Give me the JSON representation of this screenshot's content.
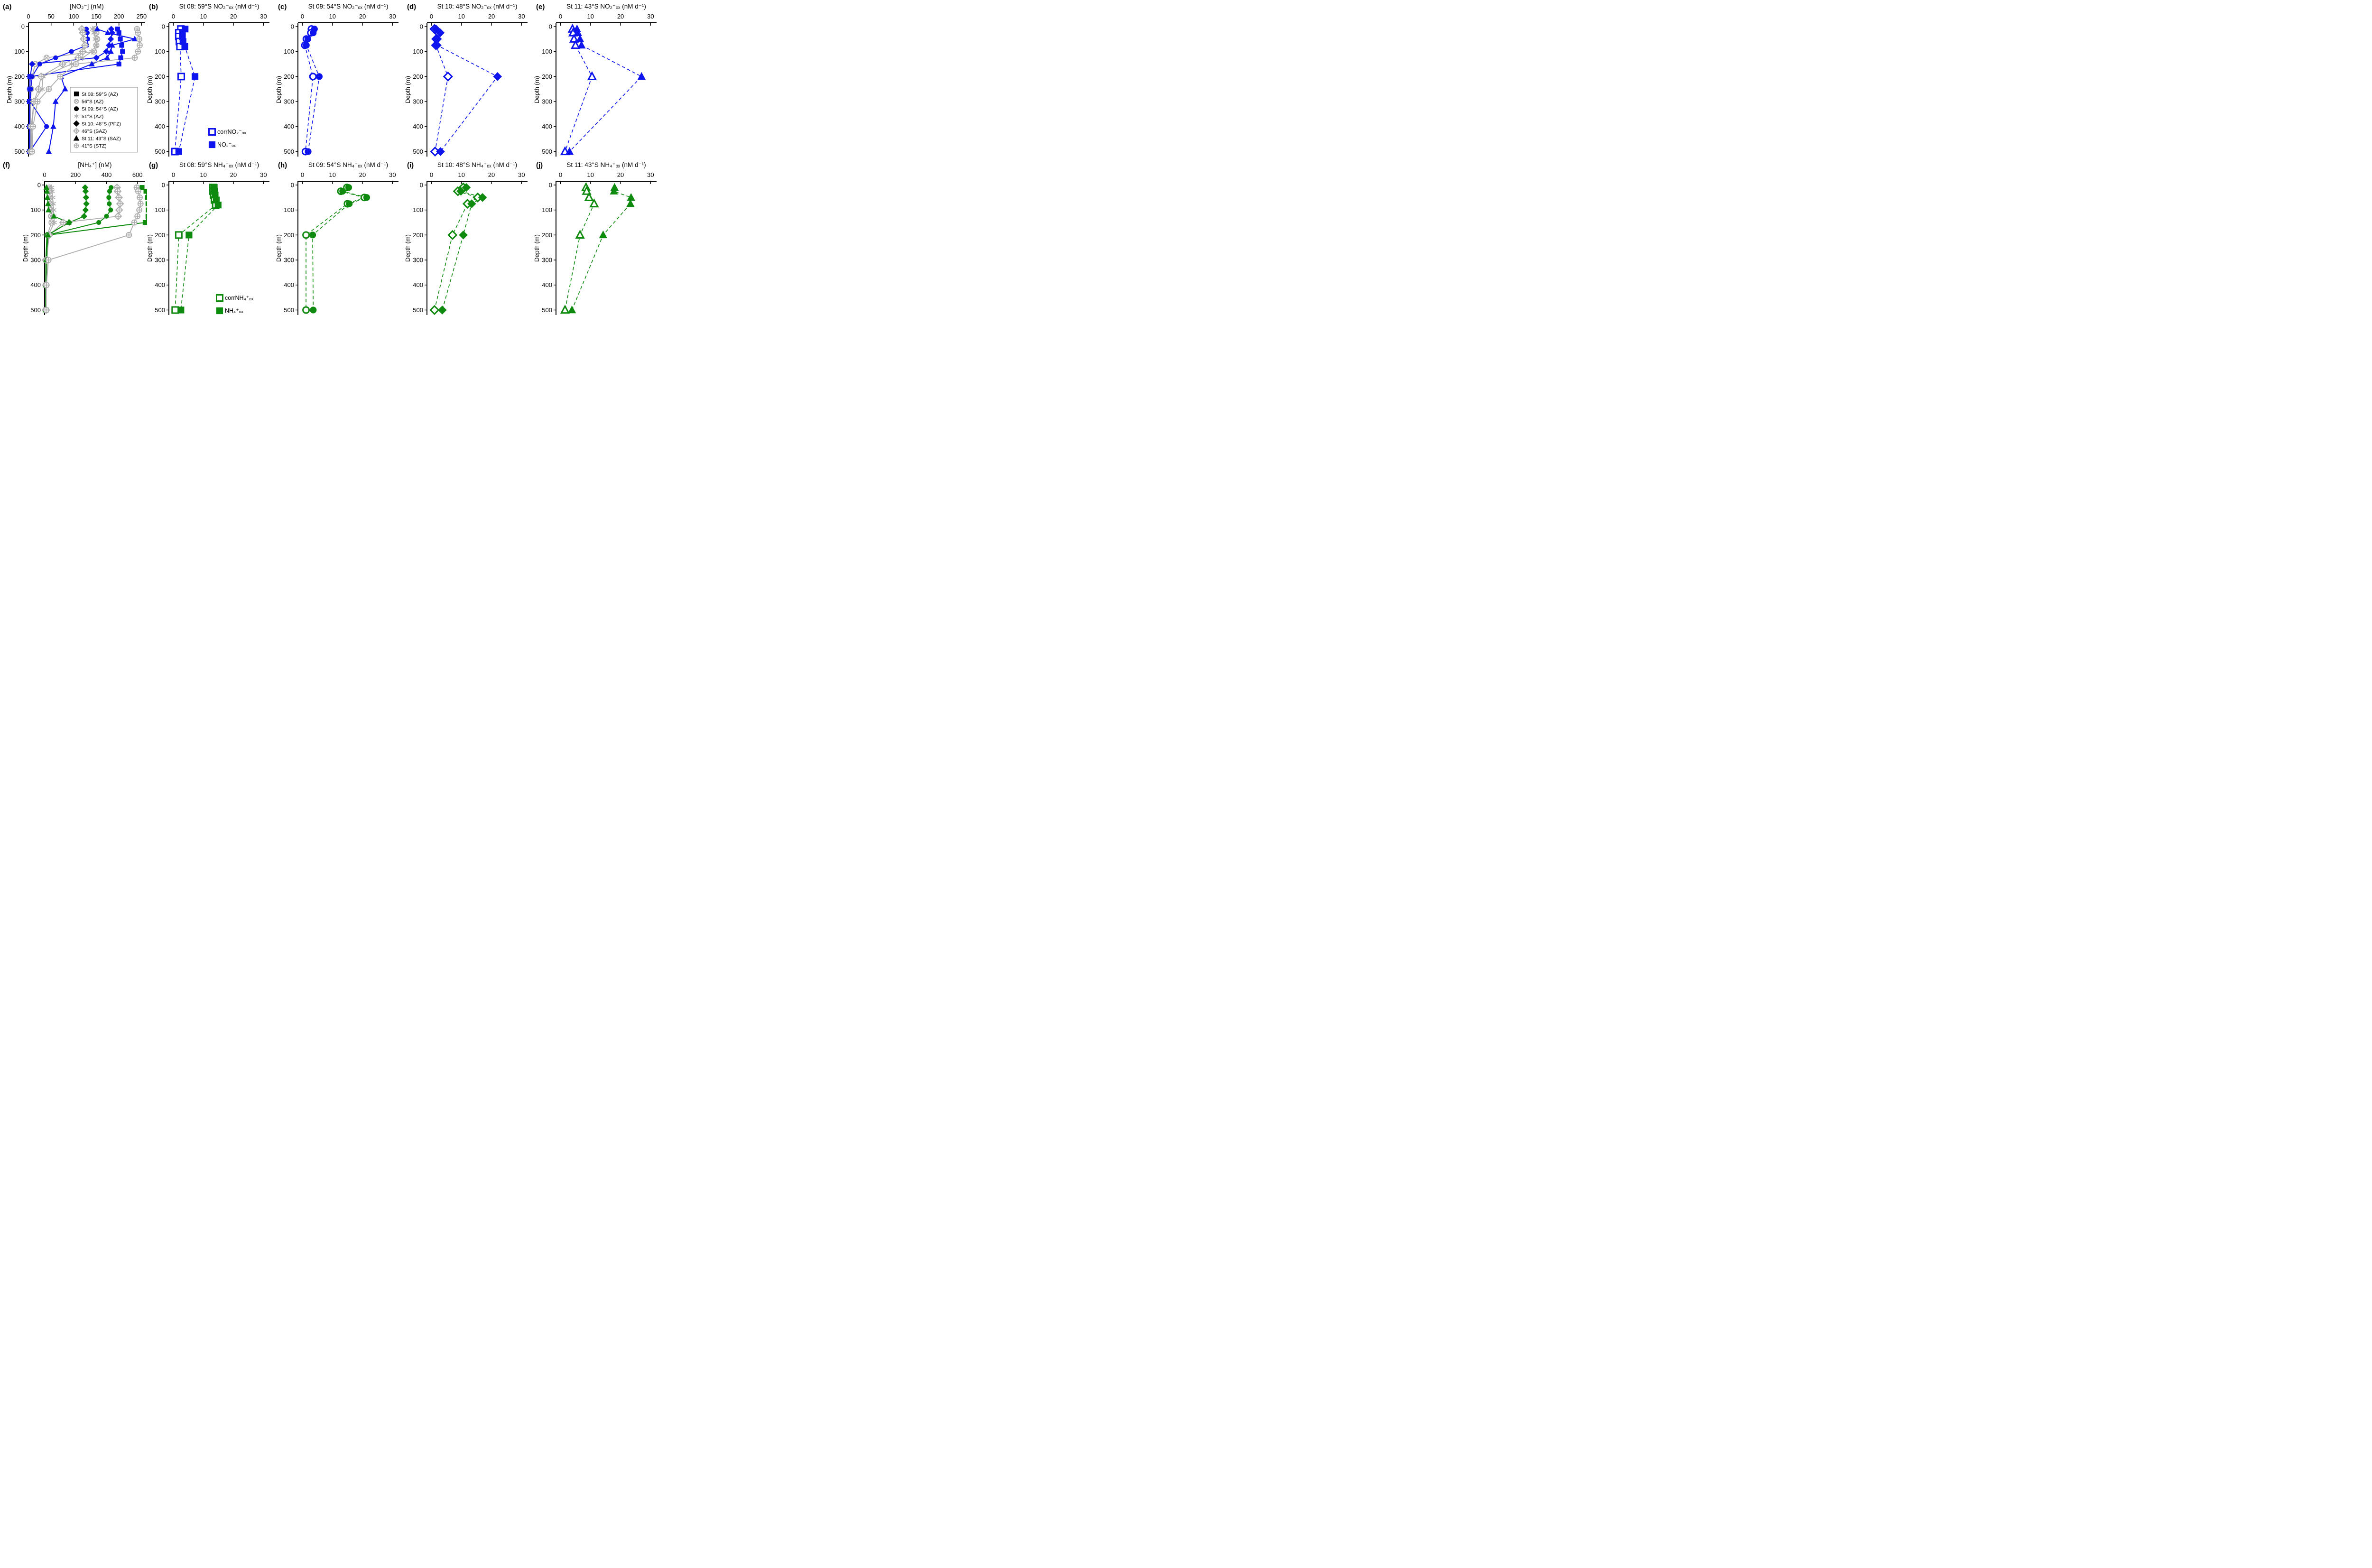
{
  "figure": {
    "background": "#ffffff",
    "colors": {
      "blue": "#0E14EE",
      "green": "#0E8B0E",
      "gray": "#ADADAD",
      "black": "#000000"
    },
    "y_axis_label": "Depth (m)"
  },
  "chart_data": [
    {
      "id": "a",
      "label": "(a)",
      "title": "[NO₂⁻] (nM)",
      "kind": "conc",
      "type": "line",
      "xlabel": "[NO2-] (nM)",
      "ylabel": "Depth (m)",
      "x": {
        "min": 0,
        "max": 258,
        "ticks": [
          0,
          50,
          100,
          150,
          200,
          250
        ]
      },
      "depth_axis": {
        "min": 0,
        "max": 500,
        "ticks": [
          0,
          100,
          200,
          300,
          400,
          500
        ]
      },
      "depths": [
        10,
        25,
        50,
        75,
        100,
        125,
        150,
        200,
        250,
        300,
        400,
        500
      ],
      "series": [
        {
          "name": "St 08: 59°S (AZ)",
          "marker": "square",
          "color": "blue",
          "filled": true,
          "line": "solid",
          "values": [
            197,
            200,
            203,
            206,
            208,
            204,
            200,
            3,
            3,
            2,
            2,
            2
          ]
        },
        {
          "name": "56°S (AZ)",
          "marker": "circle-x",
          "color": "gray",
          "filled": false,
          "line": "solid",
          "values": [
            148,
            150,
            152,
            150,
            145,
            40,
            15,
            8,
            6,
            5,
            4,
            4
          ]
        },
        {
          "name": "St 09: 54°S (AZ)",
          "marker": "circle",
          "color": "blue",
          "filled": true,
          "line": "solid",
          "values": [
            128,
            130,
            131,
            129,
            95,
            60,
            25,
            8,
            5,
            4,
            40,
            3
          ]
        },
        {
          "name": "51°S (AZ)",
          "marker": "asterisk",
          "color": "gray",
          "filled": false,
          "line": "solid",
          "values": [
            142,
            145,
            148,
            150,
            140,
            120,
            95,
            32,
            30,
            12,
            8,
            6
          ]
        },
        {
          "name": "St 10: 48°S (PFZ)",
          "marker": "diamond",
          "color": "blue",
          "filled": true,
          "line": "solid",
          "values": [
            183,
            185,
            182,
            178,
            172,
            150,
            8,
            4,
            3,
            3,
            3,
            3
          ]
        },
        {
          "name": "46°S (SAZ)",
          "marker": "diamond-plus",
          "color": "gray",
          "filled": false,
          "line": "solid",
          "values": [
            118,
            120,
            122,
            125,
            120,
            110,
            75,
            28,
            22,
            12,
            6,
            5
          ]
        },
        {
          "name": "St 11: 43°S (SAZ)",
          "marker": "triangle",
          "color": "blue",
          "filled": true,
          "line": "solid",
          "values": [
            152,
            175,
            235,
            185,
            182,
            174,
            140,
            72,
            81,
            60,
            55,
            45
          ]
        },
        {
          "name": "41°S (STZ)",
          "marker": "circle-plus",
          "color": "gray",
          "filled": false,
          "line": "solid",
          "values": [
            240,
            242,
            245,
            246,
            242,
            235,
            105,
            70,
            45,
            20,
            10,
            8
          ]
        }
      ],
      "legend": {
        "boxed": true,
        "entries": [
          {
            "marker": "square",
            "color": "black",
            "filled": true,
            "label": "St 08: 59°S (AZ)"
          },
          {
            "marker": "circle-x",
            "color": "gray",
            "filled": false,
            "label": "56°S (AZ)"
          },
          {
            "marker": "circle",
            "color": "black",
            "filled": true,
            "label": "St 09: 54°S (AZ)"
          },
          {
            "marker": "asterisk",
            "color": "gray",
            "filled": false,
            "label": "51°S (AZ)"
          },
          {
            "marker": "diamond",
            "color": "black",
            "filled": true,
            "label": "St 10: 48°S (PFZ)"
          },
          {
            "marker": "diamond-plus",
            "color": "gray",
            "filled": false,
            "label": "46°S (SAZ)"
          },
          {
            "marker": "triangle",
            "color": "black",
            "filled": true,
            "label": "St 11: 43°S (SAZ)"
          },
          {
            "marker": "circle-plus",
            "color": "gray",
            "filled": false,
            "label": "41°S (STZ)"
          }
        ]
      }
    },
    {
      "id": "b",
      "label": "(b)",
      "title": "St 08: 59°S NO₂⁻ₒₓ (nM d⁻¹)",
      "kind": "rate",
      "type": "scatter",
      "ylabel": "Depth (m)",
      "x": {
        "min": -1.5,
        "max": 32,
        "ticks": [
          0,
          10,
          20,
          30
        ]
      },
      "depth_axis": {
        "min": 0,
        "max": 500,
        "ticks": [
          0,
          100,
          200,
          300,
          400,
          500
        ]
      },
      "depths": [
        10,
        25,
        40,
        60,
        80,
        200,
        500
      ],
      "series": [
        {
          "name": "corrNO₂⁻ₒₓ",
          "marker": "square",
          "color": "blue",
          "filled": false,
          "line": "dashed",
          "values": [
            2.5,
            1.8,
            1.8,
            2.0,
            2.2,
            2.6,
            0.5
          ]
        },
        {
          "name": "NO₂⁻ₒₓ",
          "marker": "square",
          "color": "blue",
          "filled": true,
          "line": "dashed",
          "values": [
            3.9,
            3.0,
            3.0,
            3.2,
            3.8,
            7.2,
            1.8
          ]
        }
      ],
      "legend": {
        "boxed": false,
        "entries": [
          {
            "marker": "square",
            "color": "blue",
            "filled": false,
            "label": "corrNO₂⁻ₒₓ"
          },
          {
            "marker": "square",
            "color": "blue",
            "filled": true,
            "label": "NO₂⁻ₒₓ"
          }
        ]
      }
    },
    {
      "id": "c",
      "label": "(c)",
      "title": "St 09: 54°S NO₂⁻ₒₓ (nM d⁻¹)",
      "kind": "rate",
      "type": "scatter",
      "ylabel": "Depth (m)",
      "x": {
        "min": -1.5,
        "max": 32,
        "ticks": [
          0,
          10,
          20,
          30
        ]
      },
      "depth_axis": {
        "min": 0,
        "max": 500,
        "ticks": [
          0,
          100,
          200,
          300,
          400,
          500
        ]
      },
      "depths": [
        10,
        25,
        50,
        75,
        200,
        500
      ],
      "series": [
        {
          "name": "corrNO₂⁻ₒₓ",
          "marker": "circle",
          "color": "blue",
          "filled": false,
          "line": "dashed",
          "values": [
            3.0,
            2.8,
            1.3,
            0.8,
            3.5,
            1.0
          ]
        },
        {
          "name": "NO₂⁻ₒₓ",
          "marker": "circle",
          "color": "blue",
          "filled": true,
          "line": "dashed",
          "values": [
            4.0,
            3.6,
            1.8,
            1.3,
            5.6,
            1.9
          ]
        }
      ]
    },
    {
      "id": "d",
      "label": "(d)",
      "title": "St 10: 48°S NO₂⁻ₒₓ (nM d⁻¹)",
      "kind": "rate",
      "type": "scatter",
      "ylabel": "Depth (m)",
      "x": {
        "min": -1.5,
        "max": 32,
        "ticks": [
          0,
          10,
          20,
          30
        ]
      },
      "depth_axis": {
        "min": 0,
        "max": 500,
        "ticks": [
          0,
          100,
          200,
          300,
          400,
          500
        ]
      },
      "depths": [
        10,
        25,
        50,
        75,
        200,
        500
      ],
      "series": [
        {
          "name": "corrNO₂⁻ₒₓ",
          "marker": "diamond",
          "color": "blue",
          "filled": false,
          "line": "dashed",
          "values": [
            1.0,
            2.3,
            1.6,
            1.5,
            5.5,
            1.2
          ]
        },
        {
          "name": "NO₂⁻ₒₓ",
          "marker": "diamond",
          "color": "blue",
          "filled": true,
          "line": "dashed",
          "values": [
            1.5,
            2.9,
            2.0,
            1.9,
            22.0,
            3.0
          ]
        }
      ]
    },
    {
      "id": "e",
      "label": "(e)",
      "title": "St 11: 43°S NO₂⁻ₒₓ (nM d⁻¹)",
      "kind": "rate",
      "type": "scatter",
      "ylabel": "Depth (m)",
      "x": {
        "min": -1.5,
        "max": 32,
        "ticks": [
          0,
          10,
          20,
          30
        ]
      },
      "depth_axis": {
        "min": 0,
        "max": 500,
        "ticks": [
          0,
          100,
          200,
          300,
          400,
          500
        ]
      },
      "depths": [
        10,
        25,
        50,
        75,
        200,
        500
      ],
      "series": [
        {
          "name": "corrNO₂⁻ₒₓ",
          "marker": "triangle",
          "color": "blue",
          "filled": false,
          "line": "dashed",
          "values": [
            4.0,
            4.2,
            4.5,
            5.0,
            10.5,
            1.5
          ]
        },
        {
          "name": "NO₂⁻ₒₓ",
          "marker": "triangle",
          "color": "blue",
          "filled": true,
          "line": "dashed",
          "values": [
            5.5,
            5.8,
            6.5,
            7.0,
            27.0,
            3.0
          ]
        }
      ]
    },
    {
      "id": "f",
      "label": "(f)",
      "title": "[NH₄⁺] (nM)",
      "kind": "conc",
      "type": "line",
      "xlabel": "[NH4+] (nM)",
      "ylabel": "Depth (m)",
      "x": {
        "min": 0,
        "max": 650,
        "ticks": [
          0,
          200,
          400,
          600
        ]
      },
      "depth_axis": {
        "min": 0,
        "max": 500,
        "ticks": [
          0,
          100,
          200,
          300,
          400,
          500
        ]
      },
      "depths": [
        10,
        25,
        50,
        75,
        100,
        125,
        150,
        200,
        300,
        400,
        500
      ],
      "series": [
        {
          "name": "St 08: 59°S (AZ)",
          "marker": "square",
          "color": "green",
          "filled": true,
          "line": "solid",
          "values": [
            630,
            655,
            665,
            668,
            670,
            668,
            650,
            25,
            15,
            10,
            10
          ]
        },
        {
          "name": "56°S (AZ)",
          "marker": "circle-x",
          "color": "gray",
          "filled": false,
          "line": "solid",
          "values": [
            30,
            32,
            35,
            38,
            40,
            42,
            45,
            18,
            8,
            6,
            5
          ]
        },
        {
          "name": "St 09: 54°S (AZ)",
          "marker": "circle",
          "color": "green",
          "filled": true,
          "line": "solid",
          "values": [
            430,
            420,
            415,
            418,
            427,
            400,
            350,
            20,
            10,
            8,
            8
          ]
        },
        {
          "name": "51°S (AZ)",
          "marker": "asterisk",
          "color": "gray",
          "filled": false,
          "line": "solid",
          "values": [
            45,
            48,
            52,
            55,
            58,
            60,
            62,
            25,
            10,
            8,
            8
          ]
        },
        {
          "name": "St 10: 48°S (PFZ)",
          "marker": "diamond",
          "color": "green",
          "filled": true,
          "line": "solid",
          "values": [
            262,
            265,
            268,
            270,
            265,
            255,
            160,
            15,
            8,
            8,
            8
          ]
        },
        {
          "name": "46°S (SAZ)",
          "marker": "diamond-plus",
          "color": "gray",
          "filled": false,
          "line": "solid",
          "values": [
            468,
            472,
            480,
            488,
            482,
            475,
            120,
            30,
            12,
            10,
            10
          ]
        },
        {
          "name": "St 11: 43°S (SAZ)",
          "marker": "triangle",
          "color": "green",
          "filled": true,
          "line": "solid",
          "values": [
            12,
            15,
            18,
            22,
            25,
            60,
            155,
            22,
            10,
            8,
            6
          ]
        },
        {
          "name": "41°S (STZ)",
          "marker": "circle-plus",
          "color": "gray",
          "filled": false,
          "line": "solid",
          "values": [
            595,
            605,
            615,
            620,
            612,
            600,
            580,
            545,
            25,
            12,
            10
          ]
        }
      ]
    },
    {
      "id": "g",
      "label": "(g)",
      "title": "St 08: 59°S NH₄⁺ₒₓ (nM d⁻¹)",
      "kind": "rate",
      "type": "scatter",
      "ylabel": "Depth (m)",
      "x": {
        "min": -1.5,
        "max": 32,
        "ticks": [
          0,
          10,
          20,
          30
        ]
      },
      "depth_axis": {
        "min": 0,
        "max": 500,
        "ticks": [
          0,
          100,
          200,
          300,
          400,
          500
        ]
      },
      "depths": [
        10,
        25,
        40,
        60,
        80,
        200,
        500
      ],
      "series": [
        {
          "name": "corrNH₄⁺ₒₓ",
          "marker": "square",
          "color": "green",
          "filled": false,
          "line": "dashed",
          "values": [
            13.2,
            13.2,
            13.4,
            13.7,
            14.1,
            1.8,
            0.6
          ]
        },
        {
          "name": "NH₄⁺ₒₓ",
          "marker": "square",
          "color": "green",
          "filled": true,
          "line": "dashed",
          "values": [
            13.6,
            13.7,
            13.9,
            14.3,
            14.9,
            5.2,
            2.5
          ]
        }
      ],
      "legend": {
        "boxed": false,
        "entries": [
          {
            "marker": "square",
            "color": "green",
            "filled": false,
            "label": "corrNH₄⁺ₒₓ"
          },
          {
            "marker": "square",
            "color": "green",
            "filled": true,
            "label": "NH₄⁺ₒₓ"
          }
        ]
      }
    },
    {
      "id": "h",
      "label": "(h)",
      "title": "St 09: 54°S NH₄⁺ₒₓ (nM d⁻¹)",
      "kind": "rate",
      "type": "scatter",
      "ylabel": "Depth (m)",
      "x": {
        "min": -1.5,
        "max": 32,
        "ticks": [
          0,
          10,
          20,
          30
        ]
      },
      "depth_axis": {
        "min": 0,
        "max": 500,
        "ticks": [
          0,
          100,
          200,
          300,
          400,
          500
        ]
      },
      "depths": [
        10,
        25,
        50,
        75,
        200,
        500
      ],
      "series": [
        {
          "name": "corrNH₄⁺ₒₓ",
          "marker": "circle",
          "color": "green",
          "filled": false,
          "line": "dashed",
          "values": [
            14.8,
            12.8,
            20.6,
            15.0,
            1.2,
            1.2
          ]
        },
        {
          "name": "NH₄⁺ₒₓ",
          "marker": "circle",
          "color": "green",
          "filled": true,
          "line": "dashed",
          "values": [
            15.4,
            13.4,
            21.4,
            15.6,
            3.4,
            3.6
          ]
        }
      ]
    },
    {
      "id": "i",
      "label": "(i)",
      "title": "St 10: 48°S NH₄⁺ₒₓ (nM d⁻¹)",
      "kind": "rate",
      "type": "scatter",
      "ylabel": "Depth (m)",
      "x": {
        "min": -1.5,
        "max": 32,
        "ticks": [
          0,
          10,
          20,
          30
        ]
      },
      "depth_axis": {
        "min": 0,
        "max": 500,
        "ticks": [
          0,
          100,
          200,
          300,
          400,
          500
        ]
      },
      "depths": [
        10,
        25,
        50,
        75,
        200,
        500
      ],
      "series": [
        {
          "name": "corrNH₄⁺ₒₓ",
          "marker": "diamond",
          "color": "green",
          "filled": false,
          "line": "dashed",
          "values": [
            10.6,
            8.8,
            15.4,
            12.0,
            7.0,
            1.0
          ]
        },
        {
          "name": "NH₄⁺ₒₓ",
          "marker": "diamond",
          "color": "green",
          "filled": true,
          "line": "dashed",
          "values": [
            11.6,
            9.8,
            17.0,
            13.4,
            10.6,
            3.6
          ]
        }
      ]
    },
    {
      "id": "j",
      "label": "(j)",
      "title": "St 11: 43°S NH₄⁺ₒₓ (nM d⁻¹)",
      "kind": "rate",
      "type": "scatter",
      "ylabel": "Depth (m)",
      "x": {
        "min": -1.5,
        "max": 32,
        "ticks": [
          0,
          10,
          20,
          30
        ]
      },
      "depth_axis": {
        "min": 0,
        "max": 500,
        "ticks": [
          0,
          100,
          200,
          300,
          400,
          500
        ]
      },
      "depths": [
        10,
        25,
        50,
        75,
        200,
        500
      ],
      "series": [
        {
          "name": "corrNH₄⁺ₒₓ",
          "marker": "triangle",
          "color": "green",
          "filled": false,
          "line": "dashed",
          "values": [
            8.5,
            8.7,
            9.5,
            11.2,
            6.5,
            1.5
          ]
        },
        {
          "name": "NH₄⁺ₒₓ",
          "marker": "triangle",
          "color": "green",
          "filled": true,
          "line": "dashed",
          "values": [
            18.0,
            17.8,
            23.5,
            23.3,
            14.2,
            3.8
          ]
        }
      ]
    }
  ]
}
